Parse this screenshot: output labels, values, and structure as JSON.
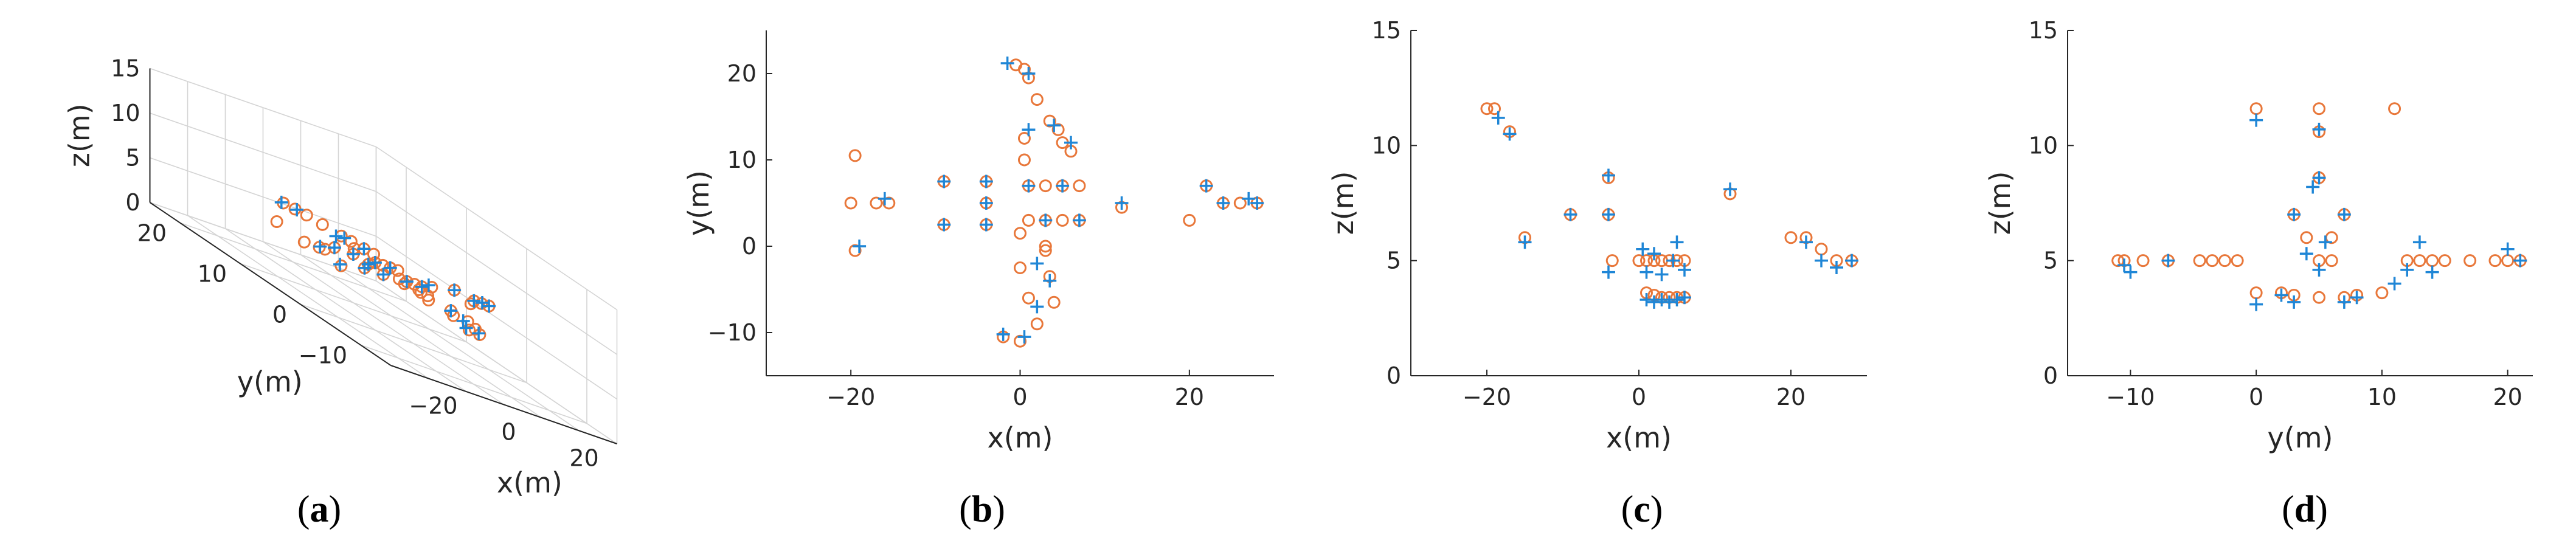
{
  "colors": {
    "reference_marker": "#e8773a",
    "estimate_marker": "#1f86d6",
    "axis": "#262626",
    "grid3d": "#d4d4d4"
  },
  "chart_data": [
    {
      "panel": "a",
      "caption_letter": "a",
      "type": "scatter",
      "view": "3d",
      "xlabel": "x(m)",
      "ylabel": "y(m)",
      "zlabel": "z(m)",
      "xlim": [
        -30,
        30
      ],
      "ylim": [
        -15,
        25
      ],
      "zlim": [
        0,
        15
      ],
      "xticks": [
        -20,
        0,
        20
      ],
      "yticks": [
        -10,
        0,
        10,
        20
      ],
      "zticks": [
        0,
        5,
        10,
        15
      ],
      "grid": true,
      "series": [
        {
          "marker": "circle",
          "points": [
            [
              -20,
              -0.5,
              0
            ],
            [
              -19.5,
              10.5,
              0
            ],
            [
              -21,
              5,
              0
            ],
            [
              -17,
              5,
              0
            ],
            [
              -15.5,
              5,
              0
            ],
            [
              -9,
              2.5,
              0
            ],
            [
              -9,
              7.5,
              0
            ],
            [
              -4,
              2.5,
              0
            ],
            [
              -4,
              5,
              0
            ],
            [
              -4,
              7.5,
              0
            ],
            [
              -1,
              21,
              0
            ],
            [
              0.5,
              20,
              0
            ],
            [
              2,
              19,
              0
            ],
            [
              3,
              17,
              0
            ],
            [
              4,
              14.5,
              0
            ],
            [
              5,
              13.5,
              0
            ],
            [
              6,
              12,
              0
            ],
            [
              7,
              11,
              0
            ],
            [
              1,
              10.5,
              0
            ],
            [
              1,
              7,
              0
            ],
            [
              1,
              3,
              0
            ],
            [
              3,
              7,
              0
            ],
            [
              3,
              3,
              0
            ],
            [
              5,
              7,
              0
            ],
            [
              5,
              3,
              0
            ],
            [
              7,
              7,
              0
            ],
            [
              7,
              3,
              0
            ],
            [
              0,
              1.5,
              0
            ],
            [
              0,
              -2.5,
              0
            ],
            [
              1,
              -6,
              0
            ],
            [
              2,
              -9,
              0
            ],
            [
              -2,
              -10.5,
              0
            ],
            [
              0,
              -11,
              0
            ],
            [
              3,
              -0.5,
              0
            ],
            [
              3.5,
              -4,
              0
            ],
            [
              4,
              -6.5,
              0
            ],
            [
              12,
              4.5,
              0
            ],
            [
              20,
              3,
              0
            ],
            [
              22,
              7,
              0
            ],
            [
              24,
              5,
              0
            ],
            [
              26,
              5,
              0
            ],
            [
              28,
              5,
              0
            ],
            [
              3,
              1,
              0
            ],
            [
              2,
              0,
              0
            ]
          ]
        },
        {
          "marker": "plus",
          "points": [
            [
              -19.5,
              0,
              0
            ],
            [
              -16,
              5.5,
              0
            ],
            [
              -9,
              7.5,
              0
            ],
            [
              -9,
              2.5,
              0
            ],
            [
              -4,
              2.5,
              0
            ],
            [
              -4,
              5,
              0
            ],
            [
              -4,
              7.5,
              0
            ],
            [
              -1.5,
              21,
              0
            ],
            [
              1,
              20,
              0
            ],
            [
              4,
              14,
              0
            ],
            [
              6,
              12,
              0
            ],
            [
              1,
              13.5,
              0
            ],
            [
              1,
              7,
              0
            ],
            [
              3,
              3,
              0
            ],
            [
              5,
              7,
              0
            ],
            [
              7,
              3,
              0
            ],
            [
              -2,
              -10,
              0
            ],
            [
              0.5,
              -10.5,
              0
            ],
            [
              2,
              -7,
              0
            ],
            [
              3.5,
              -4,
              0
            ],
            [
              12,
              5,
              0
            ],
            [
              22,
              7,
              0
            ],
            [
              24,
              5,
              0
            ],
            [
              27,
              5.5,
              0
            ],
            [
              28,
              5,
              0
            ]
          ]
        }
      ]
    },
    {
      "panel": "b",
      "caption_letter": "b",
      "type": "scatter",
      "xlabel": "x(m)",
      "ylabel": "y(m)",
      "xlim": [
        -30,
        30
      ],
      "ylim": [
        -15,
        25
      ],
      "xticks": [
        -20,
        0,
        20
      ],
      "yticks": [
        -10,
        0,
        10,
        20
      ],
      "grid": false,
      "series": [
        {
          "marker": "circle",
          "points": [
            [
              -20,
              5
            ],
            [
              -19.5,
              10.5
            ],
            [
              -19.5,
              -0.5
            ],
            [
              -17,
              5
            ],
            [
              -15.5,
              5
            ],
            [
              -9,
              2.5
            ],
            [
              -9,
              7.5
            ],
            [
              -4,
              2.5
            ],
            [
              -4,
              5
            ],
            [
              -4,
              7.5
            ],
            [
              -0.5,
              21
            ],
            [
              0.5,
              20.5
            ],
            [
              1,
              19.5
            ],
            [
              2,
              17
            ],
            [
              3.5,
              14.5
            ],
            [
              4.5,
              13.5
            ],
            [
              5,
              12
            ],
            [
              6,
              11
            ],
            [
              0.5,
              12.5
            ],
            [
              0.5,
              10
            ],
            [
              1,
              7
            ],
            [
              3,
              7
            ],
            [
              5,
              7
            ],
            [
              7,
              7
            ],
            [
              1,
              3
            ],
            [
              3,
              3
            ],
            [
              5,
              3
            ],
            [
              7,
              3
            ],
            [
              0,
              1.5
            ],
            [
              0,
              -2.5
            ],
            [
              1,
              -6
            ],
            [
              2,
              -9
            ],
            [
              -2,
              -10.5
            ],
            [
              0,
              -11
            ],
            [
              3,
              -0.5
            ],
            [
              3.5,
              -3.5
            ],
            [
              4,
              -6.5
            ],
            [
              12,
              4.5
            ],
            [
              20,
              3
            ],
            [
              22,
              7
            ],
            [
              24,
              5
            ],
            [
              26,
              5
            ],
            [
              28,
              5
            ],
            [
              3,
              0
            ]
          ]
        },
        {
          "marker": "plus",
          "points": [
            [
              -19,
              0
            ],
            [
              -16,
              5.5
            ],
            [
              -9,
              7.5
            ],
            [
              -9,
              2.5
            ],
            [
              -4,
              2.5
            ],
            [
              -4,
              5
            ],
            [
              -4,
              7.5
            ],
            [
              -1.5,
              21.2
            ],
            [
              1,
              20
            ],
            [
              4,
              14
            ],
            [
              6,
              12
            ],
            [
              1,
              13.5
            ],
            [
              1,
              7
            ],
            [
              3,
              3
            ],
            [
              5,
              7
            ],
            [
              7,
              3
            ],
            [
              -2,
              -10.2
            ],
            [
              0.5,
              -10.5
            ],
            [
              2,
              -7
            ],
            [
              3.5,
              -4
            ],
            [
              12,
              5
            ],
            [
              22,
              7
            ],
            [
              24,
              5
            ],
            [
              27,
              5.5
            ],
            [
              28,
              5
            ],
            [
              2,
              -2
            ]
          ]
        }
      ]
    },
    {
      "panel": "c",
      "caption_letter": "c",
      "type": "scatter",
      "xlabel": "x(m)",
      "ylabel": "z(m)",
      "xlim": [
        -30,
        30
      ],
      "ylim": [
        0,
        15
      ],
      "xticks": [
        -20,
        0,
        20
      ],
      "yticks": [
        0,
        5,
        10,
        15
      ],
      "grid": false,
      "series": [
        {
          "marker": "circle",
          "points": [
            [
              -20,
              11.6
            ],
            [
              -19,
              11.6
            ],
            [
              -17,
              10.6
            ],
            [
              -15,
              6
            ],
            [
              -9,
              7
            ],
            [
              -4,
              7
            ],
            [
              -4,
              8.6
            ],
            [
              -3.5,
              5
            ],
            [
              0,
              5
            ],
            [
              1,
              5
            ],
            [
              2,
              5
            ],
            [
              3,
              5
            ],
            [
              4,
              5
            ],
            [
              5,
              5
            ],
            [
              6,
              5
            ],
            [
              1,
              3.6
            ],
            [
              2,
              3.5
            ],
            [
              3,
              3.4
            ],
            [
              4,
              3.4
            ],
            [
              5,
              3.4
            ],
            [
              6,
              3.4
            ],
            [
              12,
              7.9
            ],
            [
              20,
              6
            ],
            [
              22,
              6
            ],
            [
              24,
              5.5
            ],
            [
              26,
              5
            ],
            [
              28,
              5
            ]
          ]
        },
        {
          "marker": "plus",
          "points": [
            [
              -18.5,
              11.2
            ],
            [
              -17,
              10.5
            ],
            [
              -15,
              5.8
            ],
            [
              -9,
              7
            ],
            [
              -4,
              7
            ],
            [
              -4,
              8.7
            ],
            [
              -4,
              4.5
            ],
            [
              0.5,
              5.5
            ],
            [
              1,
              4.5
            ],
            [
              2,
              5.3
            ],
            [
              3,
              4.4
            ],
            [
              4.5,
              5
            ],
            [
              5,
              5.8
            ],
            [
              6,
              4.6
            ],
            [
              1,
              3.3
            ],
            [
              2,
              3.2
            ],
            [
              3,
              3.3
            ],
            [
              4,
              3.2
            ],
            [
              5,
              3.3
            ],
            [
              6,
              3.4
            ],
            [
              12,
              8.1
            ],
            [
              22,
              5.8
            ],
            [
              24,
              5
            ],
            [
              26,
              4.7
            ],
            [
              28,
              5
            ]
          ]
        }
      ]
    },
    {
      "panel": "d",
      "caption_letter": "d",
      "type": "scatter",
      "xlabel": "y(m)",
      "ylabel": "z(m)",
      "xlim": [
        -15,
        22
      ],
      "ylim": [
        0,
        15
      ],
      "xticks": [
        -10,
        0,
        10,
        20
      ],
      "yticks": [
        0,
        5,
        10,
        15
      ],
      "grid": false,
      "series": [
        {
          "marker": "circle",
          "points": [
            [
              -11,
              5
            ],
            [
              -10.5,
              5
            ],
            [
              -9,
              5
            ],
            [
              -7,
              5
            ],
            [
              -4.5,
              5
            ],
            [
              -3.5,
              5
            ],
            [
              -2.5,
              5
            ],
            [
              -1.5,
              5
            ],
            [
              0,
              11.6
            ],
            [
              0,
              3.6
            ],
            [
              5,
              11.6
            ],
            [
              11,
              11.6
            ],
            [
              5,
              10.6
            ],
            [
              5,
              8.6
            ],
            [
              3,
              7
            ],
            [
              7,
              7
            ],
            [
              4,
              6
            ],
            [
              6,
              6
            ],
            [
              5,
              5
            ],
            [
              6,
              5
            ],
            [
              2,
              3.6
            ],
            [
              3,
              3.5
            ],
            [
              5,
              3.4
            ],
            [
              7,
              3.4
            ],
            [
              8,
              3.5
            ],
            [
              10,
              3.6
            ],
            [
              12,
              5
            ],
            [
              13,
              5
            ],
            [
              14,
              5
            ],
            [
              15,
              5
            ],
            [
              17,
              5
            ],
            [
              19,
              5
            ],
            [
              20,
              5
            ],
            [
              21,
              5
            ]
          ]
        },
        {
          "marker": "plus",
          "points": [
            [
              -10.5,
              4.8
            ],
            [
              -10,
              4.5
            ],
            [
              -7,
              5
            ],
            [
              0,
              11.1
            ],
            [
              0,
              3.1
            ],
            [
              5,
              10.7
            ],
            [
              5,
              8.6
            ],
            [
              4.5,
              8.2
            ],
            [
              3,
              7
            ],
            [
              7,
              7
            ],
            [
              5.5,
              5.8
            ],
            [
              4,
              5.3
            ],
            [
              5,
              4.6
            ],
            [
              2,
              3.5
            ],
            [
              3,
              3.2
            ],
            [
              7,
              3.2
            ],
            [
              8,
              3.4
            ],
            [
              11,
              4
            ],
            [
              12,
              4.6
            ],
            [
              13,
              5.8
            ],
            [
              14,
              4.5
            ],
            [
              20,
              5.5
            ],
            [
              21,
              5
            ]
          ]
        }
      ]
    }
  ]
}
